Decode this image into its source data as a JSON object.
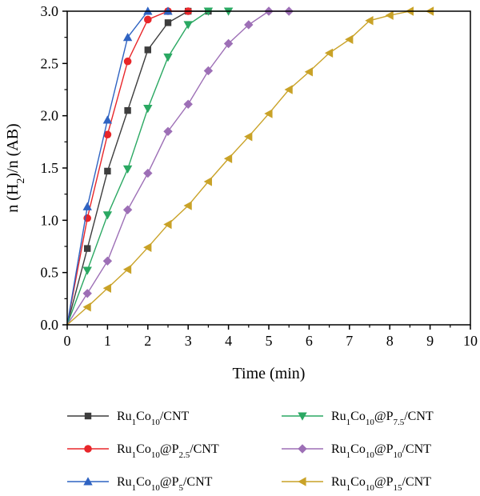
{
  "chart_data": {
    "type": "line",
    "title": "",
    "xlabel": "Time (min)",
    "ylabel": {
      "pre": "n (H",
      "sub": "2",
      "post": ")/n (AB)"
    },
    "xlim": [
      0,
      10
    ],
    "ylim": [
      0,
      3.0
    ],
    "xticks": [
      "0",
      "1",
      "2",
      "3",
      "4",
      "5",
      "6",
      "7",
      "8",
      "9",
      "10"
    ],
    "yticks": [
      "0.0",
      "0.5",
      "1.0",
      "1.5",
      "2.0",
      "2.5",
      "3.0"
    ],
    "grid": false,
    "legend_position": "bottom",
    "series": [
      {
        "name": "Ru1Co10/CNT",
        "label_parts": [
          [
            "Ru",
            false
          ],
          [
            "1",
            true
          ],
          [
            "Co",
            false
          ],
          [
            "10",
            true
          ],
          [
            "/CNT",
            false
          ]
        ],
        "color": "#3d3d3d",
        "marker": "square",
        "x": [
          0,
          0.5,
          1,
          1.5,
          2,
          2.5,
          3,
          3.5
        ],
        "y": [
          0,
          0.73,
          1.47,
          2.05,
          2.63,
          2.89,
          3.0,
          3.0
        ]
      },
      {
        "name": "Ru1Co10@P2.5/CNT",
        "label_parts": [
          [
            "Ru",
            false
          ],
          [
            "1",
            true
          ],
          [
            "Co",
            false
          ],
          [
            "10",
            true
          ],
          [
            "@P",
            false
          ],
          [
            "2.5",
            true
          ],
          [
            "/CNT",
            false
          ]
        ],
        "color": "#e8262a",
        "marker": "circle",
        "x": [
          0,
          0.5,
          1,
          1.5,
          2,
          2.5,
          3
        ],
        "y": [
          0,
          1.02,
          1.82,
          2.52,
          2.92,
          3.0,
          3.0
        ]
      },
      {
        "name": "Ru1Co10@P5/CNT",
        "label_parts": [
          [
            "Ru",
            false
          ],
          [
            "1",
            true
          ],
          [
            "Co",
            false
          ],
          [
            "10",
            true
          ],
          [
            "@P",
            false
          ],
          [
            "5",
            true
          ],
          [
            "/CNT",
            false
          ]
        ],
        "color": "#2f63c2",
        "marker": "triangle-up",
        "x": [
          0,
          0.5,
          1,
          1.5,
          2,
          2.5
        ],
        "y": [
          0,
          1.13,
          1.96,
          2.75,
          3.0,
          3.0
        ]
      },
      {
        "name": "Ru1Co10@P7.5/CNT",
        "label_parts": [
          [
            "Ru",
            false
          ],
          [
            "1",
            true
          ],
          [
            "Co",
            false
          ],
          [
            "10",
            true
          ],
          [
            "@P",
            false
          ],
          [
            "7.5",
            true
          ],
          [
            "/CNT",
            false
          ]
        ],
        "color": "#2aa862",
        "marker": "triangle-down",
        "x": [
          0,
          0.5,
          1,
          1.5,
          2,
          2.5,
          3,
          3.5,
          4
        ],
        "y": [
          0,
          0.52,
          1.05,
          1.49,
          2.07,
          2.56,
          2.87,
          3.0,
          3.0
        ]
      },
      {
        "name": "Ru1Co10@P10/CNT",
        "label_parts": [
          [
            "Ru",
            false
          ],
          [
            "1",
            true
          ],
          [
            "Co",
            false
          ],
          [
            "10",
            true
          ],
          [
            "@P",
            false
          ],
          [
            "10",
            true
          ],
          [
            "/CNT",
            false
          ]
        ],
        "color": "#9d6fb6",
        "marker": "diamond",
        "x": [
          0,
          0.5,
          1,
          1.5,
          2,
          2.5,
          3,
          3.5,
          4,
          4.5,
          5,
          5.5
        ],
        "y": [
          0,
          0.3,
          0.61,
          1.1,
          1.45,
          1.85,
          2.11,
          2.43,
          2.69,
          2.87,
          3.0,
          3.0
        ]
      },
      {
        "name": "Ru1Co10@P15/CNT",
        "label_parts": [
          [
            "Ru",
            false
          ],
          [
            "1",
            true
          ],
          [
            "Co",
            false
          ],
          [
            "10",
            true
          ],
          [
            "@P",
            false
          ],
          [
            "15",
            true
          ],
          [
            "/CNT",
            false
          ]
        ],
        "color": "#c9a227",
        "marker": "triangle-left",
        "x": [
          0,
          0.5,
          1,
          1.5,
          2,
          2.5,
          3,
          3.5,
          4,
          4.5,
          5,
          5.5,
          6,
          6.5,
          7,
          7.5,
          8,
          8.5,
          9
        ],
        "y": [
          0,
          0.17,
          0.35,
          0.53,
          0.74,
          0.96,
          1.14,
          1.37,
          1.59,
          1.8,
          2.02,
          2.25,
          2.42,
          2.6,
          2.73,
          2.91,
          2.96,
          3.0,
          3.0
        ]
      }
    ]
  }
}
